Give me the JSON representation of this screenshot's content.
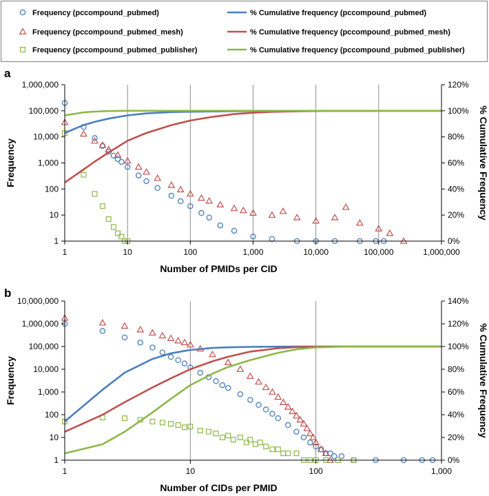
{
  "colors": {
    "pubmed": "#4a7ebb",
    "mesh": "#c0504d",
    "publisher": "#8cb748",
    "grid": "#8c8c8c",
    "axis": "#000000",
    "legend_border": "#7f7f7f"
  },
  "legend": [
    {
      "series": "pubmed",
      "kind": "marker",
      "marker": "circle",
      "label": "Frequency (pccompound_pubmed)"
    },
    {
      "series": "pubmed",
      "kind": "line",
      "label": "% Cumulative frequency (pccompound_pubmed)"
    },
    {
      "series": "mesh",
      "kind": "marker",
      "marker": "triangle",
      "label": "Frequency (pccompound_pubmed_mesh)"
    },
    {
      "series": "mesh",
      "kind": "line",
      "label": "% Cumulative frequency (pccompound_pubmed_mesh)"
    },
    {
      "series": "publisher",
      "kind": "marker",
      "marker": "square",
      "label": "Frequency (pccompound_pubmed_publisher)"
    },
    {
      "series": "publisher",
      "kind": "line",
      "label": "% Cumulative frequency (pccompound_pubmed_publisher)"
    }
  ],
  "chart_data": [
    {
      "panel_label": "a",
      "type": "scatter",
      "xlabel": "Number of PMIDs per CID",
      "ylabel": "Frequency",
      "y2label": "% Cumulative Frequency",
      "xscale": "log",
      "xlim": [
        1,
        1000000
      ],
      "xticks": [
        "1",
        "10",
        "100",
        "1,000",
        "10,000",
        "100,000",
        "1,000,000"
      ],
      "yscale": "log",
      "ylim": [
        1,
        1000000
      ],
      "yticks": [
        "1",
        "10",
        "100",
        "1,000",
        "10,000",
        "100,000",
        "1,000,000"
      ],
      "y2lim": [
        0,
        120
      ],
      "y2ticks": [
        "0%",
        "20%",
        "40%",
        "60%",
        "80%",
        "100%",
        "120%"
      ],
      "grid": "vertical",
      "series": [
        {
          "name": "Frequency (pccompound_pubmed)",
          "key": "pubmed",
          "kind": "scatter",
          "marker": "circle",
          "x": [
            1,
            2,
            3,
            4,
            5,
            6,
            7,
            8,
            10,
            15,
            20,
            30,
            50,
            70,
            100,
            150,
            200,
            300,
            500,
            1000,
            2000,
            5000,
            10000,
            20000,
            50000,
            90000,
            120000
          ],
          "y": [
            200000,
            24000,
            9000,
            4500,
            2700,
            1900,
            1400,
            1100,
            700,
            330,
            200,
            110,
            55,
            34,
            22,
            12,
            8,
            4,
            2.5,
            1.5,
            1.2,
            1,
            1,
            1,
            1,
            1,
            1
          ]
        },
        {
          "name": "Frequency (pccompound_pubmed_mesh)",
          "key": "mesh",
          "kind": "scatter",
          "marker": "triangle",
          "x": [
            1,
            2,
            3,
            4,
            5,
            7,
            10,
            15,
            20,
            30,
            50,
            70,
            100,
            150,
            200,
            300,
            500,
            700,
            1000,
            2000,
            3000,
            5000,
            10000,
            20000,
            30000,
            50000,
            100000,
            150000,
            250000
          ],
          "y": [
            36000,
            13000,
            7000,
            4800,
            3300,
            2000,
            1200,
            700,
            450,
            260,
            140,
            95,
            65,
            45,
            35,
            25,
            18,
            15,
            12,
            10,
            14,
            8,
            6,
            8,
            20,
            5,
            3,
            2,
            1
          ]
        },
        {
          "name": "Frequency (pccompound_pubmed_publisher)",
          "key": "publisher",
          "kind": "scatter",
          "marker": "square",
          "x": [
            1,
            2,
            3,
            4,
            5,
            6,
            7,
            8,
            9,
            10
          ],
          "y": [
            14000,
            350,
            65,
            22,
            7,
            3.5,
            2,
            1.5,
            1,
            1
          ]
        },
        {
          "name": "% Cumulative frequency (pccompound_pubmed)",
          "key": "pubmed",
          "kind": "line",
          "axis": "y2",
          "x": [
            1,
            2,
            3,
            5,
            10,
            20,
            50,
            100,
            200,
            500,
            1000,
            10000,
            1000000
          ],
          "y": [
            83,
            89,
            91.5,
            94,
            96.5,
            98,
            99,
            99.3,
            99.5,
            99.7,
            99.8,
            99.9,
            100
          ]
        },
        {
          "name": "% Cumulative frequency (pccompound_pubmed_mesh)",
          "key": "mesh",
          "kind": "line",
          "axis": "y2",
          "x": [
            1,
            2,
            3,
            5,
            10,
            20,
            50,
            100,
            200,
            500,
            1000,
            2000,
            5000,
            10000,
            20000,
            100000,
            1000000
          ],
          "y": [
            45,
            55,
            61,
            68,
            77,
            83,
            89,
            92.5,
            95,
            97.5,
            98.5,
            99.2,
            99.6,
            99.8,
            99.9,
            100,
            100
          ]
        },
        {
          "name": "% Cumulative frequency (pccompound_pubmed_publisher)",
          "key": "publisher",
          "kind": "line",
          "axis": "y2",
          "x": [
            1,
            2,
            3,
            5,
            10,
            100,
            1000000
          ],
          "y": [
            96.5,
            98.8,
            99.4,
            99.8,
            100,
            100,
            100
          ]
        }
      ]
    },
    {
      "panel_label": "b",
      "type": "scatter",
      "xlabel": "Number of CIDs per PMID",
      "ylabel": "Frequency",
      "y2label": "% Cumulative Frequency",
      "xscale": "log",
      "xlim": [
        1,
        1000
      ],
      "xticks": [
        "1",
        "10",
        "100",
        "1,000"
      ],
      "yscale": "log",
      "ylim": [
        1,
        10000000
      ],
      "yticks": [
        "1",
        "10",
        "100",
        "1,000",
        "10,000",
        "100,000",
        "1,000,000",
        "10,000,000"
      ],
      "y2lim": [
        0,
        140
      ],
      "y2ticks": [
        "0%",
        "20%",
        "40%",
        "60%",
        "80%",
        "100%",
        "120%",
        "140%"
      ],
      "grid": "vertical",
      "series": [
        {
          "name": "Frequency (pccompound_pubmed)",
          "key": "pubmed",
          "kind": "scatter",
          "marker": "circle",
          "x": [
            1,
            2,
            3,
            4,
            5,
            6,
            7,
            8,
            9,
            10,
            12,
            14,
            16,
            18,
            20,
            25,
            30,
            35,
            40,
            45,
            50,
            60,
            70,
            80,
            90,
            100,
            110,
            120,
            130,
            140,
            160,
            200,
            300,
            500,
            700,
            850
          ],
          "y": [
            1000000,
            480000,
            250000,
            150000,
            90000,
            55000,
            35000,
            25000,
            18000,
            12000,
            7000,
            4500,
            3000,
            2000,
            1500,
            800,
            450,
            270,
            170,
            110,
            70,
            35,
            18,
            10,
            6,
            4,
            3,
            2,
            2,
            1.5,
            1.5,
            1,
            1,
            1,
            1,
            1
          ]
        },
        {
          "name": "Frequency (pccompound_pubmed_mesh)",
          "key": "mesh",
          "kind": "scatter",
          "marker": "triangle",
          "x": [
            1,
            2,
            3,
            4,
            5,
            6,
            7,
            8,
            9,
            10,
            12,
            15,
            20,
            25,
            30,
            35,
            40,
            45,
            50,
            55,
            60,
            65,
            70,
            75,
            80,
            85,
            90,
            95,
            100,
            110,
            120,
            130
          ],
          "y": [
            1800000,
            1100000,
            800000,
            550000,
            400000,
            300000,
            230000,
            180000,
            150000,
            120000,
            80000,
            45000,
            20000,
            10000,
            5000,
            2800,
            1600,
            1000,
            600,
            350,
            220,
            140,
            90,
            60,
            40,
            25,
            15,
            10,
            6,
            3,
            2,
            1
          ]
        },
        {
          "name": "Frequency (pccompound_pubmed_publisher)",
          "key": "publisher",
          "kind": "scatter",
          "marker": "square",
          "x": [
            1,
            2,
            3,
            4,
            5,
            6,
            7,
            8,
            9,
            10,
            12,
            14,
            16,
            18,
            20,
            22,
            25,
            28,
            30,
            33,
            36,
            40,
            45,
            50,
            55,
            60,
            70,
            80,
            90,
            100,
            120,
            150,
            200
          ],
          "y": [
            50,
            75,
            70,
            60,
            50,
            45,
            40,
            35,
            28,
            30,
            20,
            18,
            15,
            10,
            12,
            8,
            10,
            6,
            8,
            5,
            6,
            4,
            3,
            3,
            2,
            2,
            2,
            1,
            1,
            1,
            1,
            1,
            1
          ]
        },
        {
          "name": "% Cumulative frequency (pccompound_pubmed)",
          "key": "pubmed",
          "kind": "line",
          "axis": "y2",
          "x": [
            1,
            2,
            3,
            5,
            7,
            10,
            15,
            20,
            30,
            50,
            70,
            100,
            1000
          ],
          "y": [
            34,
            62,
            77,
            89,
            94,
            97,
            98.7,
            99.3,
            99.7,
            99.9,
            100,
            100,
            100
          ]
        },
        {
          "name": "% Cumulative frequency (pccompound_pubmed_mesh)",
          "key": "mesh",
          "kind": "line",
          "axis": "y2",
          "x": [
            1,
            2,
            3,
            5,
            7,
            10,
            15,
            20,
            30,
            50,
            70,
            100,
            150,
            1000
          ],
          "y": [
            25,
            40,
            51,
            64,
            72,
            80,
            87,
            91,
            95.5,
            98.5,
            99.4,
            99.8,
            100,
            100
          ]
        },
        {
          "name": "% Cumulative frequency (pccompound_pubmed_publisher)",
          "key": "publisher",
          "kind": "line",
          "axis": "y2",
          "x": [
            1,
            2,
            3,
            5,
            7,
            10,
            15,
            20,
            30,
            50,
            70,
            100,
            150,
            200,
            1000
          ],
          "y": [
            6,
            14,
            25,
            42,
            54,
            66,
            76,
            82,
            88,
            94.5,
            97.5,
            99.2,
            99.8,
            100,
            100
          ]
        }
      ]
    }
  ]
}
